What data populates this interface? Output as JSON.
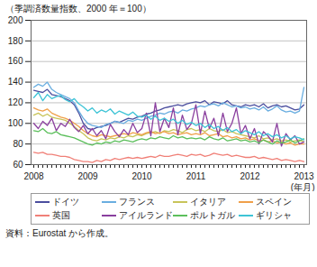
{
  "chart_data": {
    "type": "line",
    "y_label": "（季調済数量指数、2000 年＝100）",
    "x_label": "(年月)",
    "caption": "資料：Eurostat から作成。",
    "categories": [
      "2008",
      null,
      null,
      null,
      null,
      null,
      null,
      null,
      null,
      null,
      null,
      null,
      "2009",
      null,
      null,
      null,
      null,
      null,
      null,
      null,
      null,
      null,
      null,
      null,
      "2010",
      null,
      null,
      null,
      null,
      null,
      null,
      null,
      null,
      null,
      null,
      null,
      "2011",
      null,
      null,
      null,
      null,
      null,
      null,
      null,
      null,
      null,
      null,
      null,
      "2012",
      null,
      null,
      null,
      null,
      null,
      null,
      null,
      null,
      null,
      null,
      null,
      "2013"
    ],
    "series": [
      {
        "name": "ドイツ",
        "color": "#4b4e9e",
        "values": [
          132,
          131,
          130,
          133,
          128,
          127,
          126,
          124,
          122,
          118,
          110,
          100,
          95,
          94,
          96,
          97,
          98,
          100,
          102,
          101,
          103,
          105,
          104,
          106,
          107,
          109,
          110,
          112,
          113,
          115,
          116,
          117,
          118,
          117,
          119,
          120,
          121,
          120,
          122,
          118,
          121,
          120,
          119,
          122,
          118,
          117,
          116,
          118,
          117,
          118,
          116,
          119,
          115,
          117,
          118,
          116,
          117,
          115,
          113,
          114,
          118
        ]
      },
      {
        "name": "フランス",
        "color": "#6aaee0",
        "values": [
          135,
          138,
          136,
          140,
          133,
          130,
          128,
          126,
          124,
          120,
          112,
          105,
          100,
          98,
          97,
          96,
          99,
          100,
          102,
          101,
          100,
          103,
          102,
          104,
          103,
          105,
          107,
          108,
          110,
          109,
          111,
          112,
          110,
          113,
          112,
          114,
          115,
          117,
          116,
          118,
          119,
          117,
          120,
          118,
          116,
          117,
          115,
          116,
          114,
          115,
          113,
          116,
          112,
          114,
          117,
          113,
          111,
          112,
          110,
          112,
          135
        ]
      },
      {
        "name": "イタリア",
        "color": "#c8c45a",
        "values": [
          108,
          110,
          107,
          109,
          106,
          105,
          104,
          103,
          100,
          97,
          93,
          90,
          86,
          84,
          83,
          85,
          84,
          86,
          85,
          87,
          86,
          88,
          87,
          89,
          88,
          90,
          91,
          92,
          90,
          93,
          92,
          94,
          93,
          91,
          94,
          95,
          93,
          94,
          92,
          95,
          93,
          92,
          94,
          91,
          92,
          90,
          89,
          88,
          87,
          86,
          88,
          85,
          86,
          84,
          85,
          83,
          84,
          82,
          83,
          84,
          82
        ]
      },
      {
        "name": "スペイン",
        "color": "#f0a04a",
        "values": [
          115,
          113,
          112,
          114,
          110,
          108,
          106,
          105,
          103,
          100,
          97,
          93,
          90,
          88,
          87,
          89,
          88,
          87,
          88,
          89,
          90,
          89,
          91,
          90,
          89,
          91,
          92,
          90,
          91,
          92,
          90,
          91,
          89,
          90,
          91,
          89,
          90,
          89,
          91,
          88,
          89,
          90,
          87,
          88,
          86,
          87,
          85,
          86,
          84,
          85,
          83,
          84,
          82,
          83,
          81,
          82,
          80,
          81,
          79,
          80,
          80
        ]
      },
      {
        "name": "英国",
        "color": "#f08078",
        "values": [
          72,
          71,
          72,
          70,
          70,
          69,
          68,
          68,
          67,
          65,
          64,
          63,
          63,
          62,
          64,
          63,
          65,
          64,
          66,
          65,
          66,
          67,
          66,
          67,
          66,
          67,
          68,
          67,
          69,
          68,
          68,
          69,
          70,
          69,
          68,
          70,
          69,
          70,
          68,
          69,
          71,
          70,
          69,
          70,
          68,
          69,
          68,
          67,
          67,
          68,
          66,
          67,
          66,
          65,
          66,
          64,
          65,
          64,
          63,
          64,
          63
        ]
      },
      {
        "name": "アイルランド",
        "color": "#8a3f9e",
        "values": [
          100,
          95,
          102,
          98,
          105,
          93,
          100,
          97,
          104,
          96,
          92,
          98,
          90,
          95,
          88,
          93,
          85,
          99,
          92,
          87,
          94,
          89,
          100,
          91,
          95,
          110,
          88,
          120,
          92,
          105,
          96,
          115,
          89,
          108,
          94,
          100,
          118,
          90,
          112,
          95,
          105,
          88,
          110,
          92,
          100,
          115,
          90,
          98,
          85,
          95,
          80,
          92,
          88,
          82,
          100,
          78,
          90,
          84,
          88,
          80,
          82
        ]
      },
      {
        "name": "ポルトガル",
        "color": "#5cbf5c",
        "values": [
          93,
          92,
          95,
          91,
          90,
          92,
          89,
          88,
          87,
          86,
          84,
          82,
          80,
          79,
          81,
          80,
          82,
          81,
          83,
          82,
          84,
          83,
          82,
          84,
          85,
          84,
          86,
          85,
          87,
          86,
          85,
          88,
          86,
          87,
          85,
          86,
          85,
          86,
          84,
          87,
          85,
          84,
          86,
          83,
          84,
          85,
          83,
          84,
          82,
          83,
          81,
          84,
          82,
          80,
          83,
          81,
          82,
          84,
          81,
          83,
          85
        ]
      },
      {
        "name": "ギリシャ",
        "color": "#3ec4d6",
        "values": [
          125,
          130,
          122,
          128,
          124,
          126,
          127,
          123,
          121,
          124,
          119,
          116,
          112,
          115,
          110,
          113,
          111,
          114,
          109,
          112,
          110,
          108,
          111,
          107,
          106,
          108,
          104,
          107,
          103,
          105,
          102,
          104,
          100,
          103,
          99,
          101,
          98,
          100,
          96,
          99,
          95,
          97,
          93,
          96,
          92,
          94,
          90,
          93,
          91,
          89,
          92,
          88,
          90,
          87,
          89,
          86,
          88,
          85,
          87,
          86,
          84
        ]
      }
    ],
    "ylim": [
      60,
      200
    ],
    "yticks": [
      60,
      80,
      100,
      120,
      140,
      160,
      180,
      200
    ],
    "grid": true,
    "legend": "bottom"
  }
}
